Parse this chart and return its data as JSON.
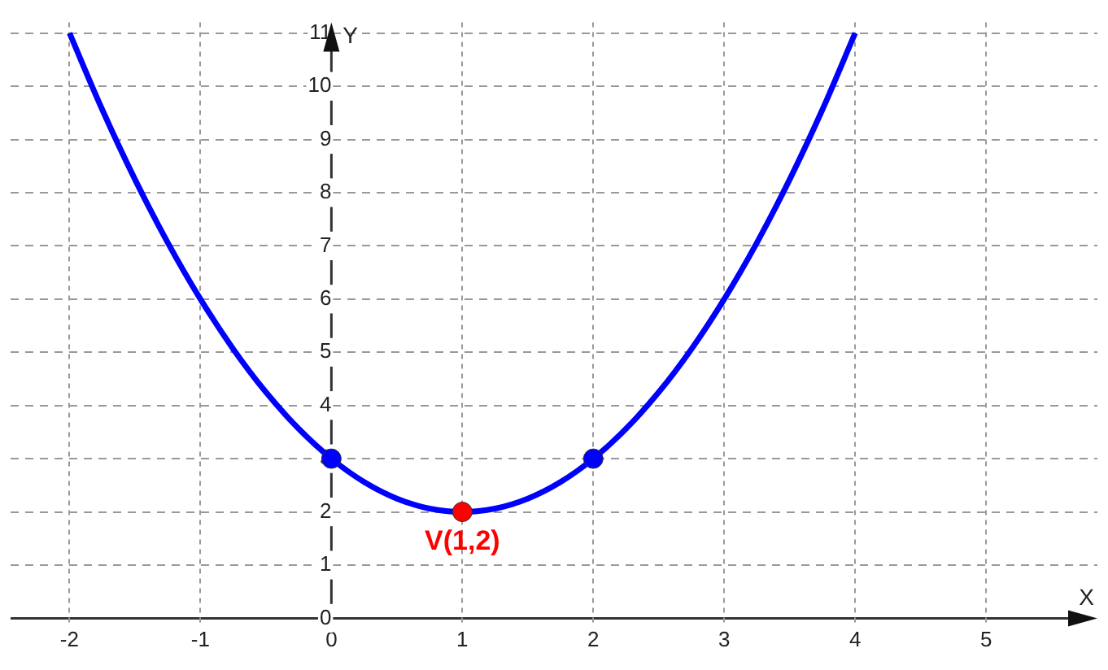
{
  "chart_data": {
    "type": "line",
    "xlabel": "X",
    "ylabel": "Y",
    "xlim": [
      -2.45,
      5.85
    ],
    "ylim": [
      -0.55,
      11.2
    ],
    "xticks": [
      -2,
      -1,
      0,
      1,
      2,
      3,
      4,
      5
    ],
    "yticks": [
      0,
      1,
      2,
      3,
      4,
      5,
      6,
      7,
      8,
      9,
      10,
      11
    ],
    "grid": true,
    "legend": false,
    "series": [
      {
        "color": "#0000ff",
        "marker": "none",
        "x": [
          -2,
          -1.75,
          -1.5,
          -1.25,
          -1,
          -0.75,
          -0.5,
          -0.25,
          0,
          0.25,
          0.5,
          0.75,
          1,
          1.25,
          1.5,
          1.75,
          2,
          2.25,
          2.5,
          2.75,
          3,
          3.25,
          3.5,
          3.75,
          4
        ],
        "values": [
          11,
          9.5625,
          8.25,
          7.0625,
          6,
          5.0625,
          4.25,
          3.5625,
          3,
          2.5625,
          2.25,
          2.0625,
          2,
          2.0625,
          2.25,
          2.5625,
          3,
          3.5625,
          4.25,
          5.0625,
          6,
          7.0625,
          8.25,
          9.5625,
          11
        ]
      },
      {
        "type": "scatter",
        "color": "#0000ff",
        "marker": "circle",
        "x": [
          0,
          2
        ],
        "values": [
          3,
          3
        ]
      },
      {
        "type": "scatter",
        "color": "#ff0000",
        "marker": "circle",
        "x": [
          1
        ],
        "values": [
          2
        ]
      }
    ],
    "annotations": [
      {
        "text": "V(1,2)",
        "x": 1,
        "y": 2
      }
    ]
  }
}
